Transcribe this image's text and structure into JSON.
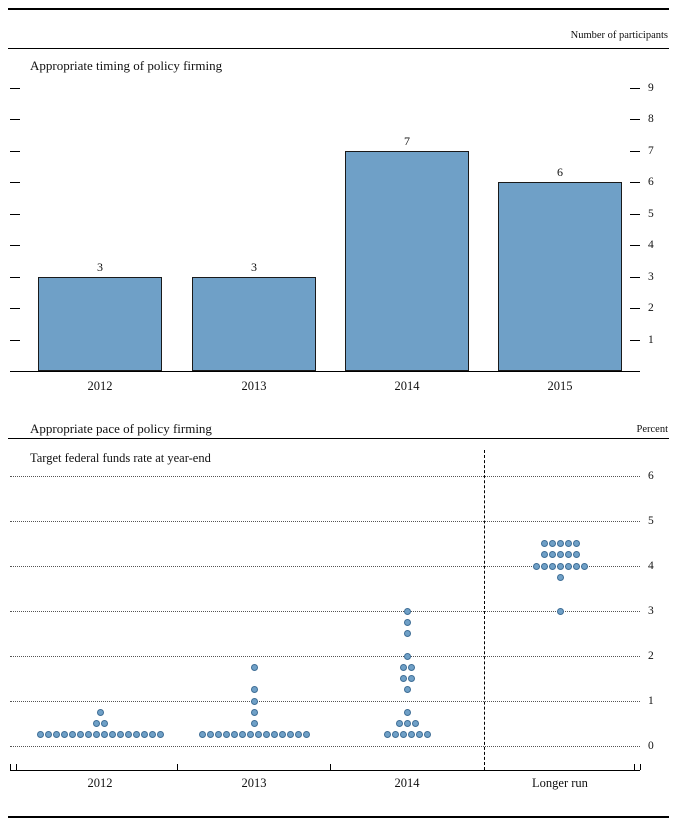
{
  "figure": {
    "top_right_note": "Number of participants",
    "bottom_right_note": "Percent"
  },
  "chart_data": [
    {
      "type": "bar",
      "title": "Appropriate timing of policy firming",
      "right_axis_label": "Number of participants",
      "categories": [
        "2012",
        "2013",
        "2014",
        "2015"
      ],
      "values": [
        3,
        3,
        7,
        6
      ],
      "yticks": [
        1,
        2,
        3,
        4,
        5,
        6,
        7,
        8,
        9
      ],
      "ylim": [
        0,
        9.5
      ],
      "bar_color": "#6fa0c7",
      "grid": "off",
      "legend": "none"
    },
    {
      "type": "scatter",
      "title": "Appropriate pace of policy firming",
      "subtitle": "Target federal funds rate at year-end",
      "right_axis_label": "Percent",
      "categories": [
        "2012",
        "2013",
        "2014",
        "Longer run"
      ],
      "yticks": [
        0,
        1,
        2,
        3,
        4,
        5,
        6
      ],
      "ylim": [
        -0.4,
        6.6
      ],
      "dot_color": "#6fa0c7",
      "grid": "dotted-horizontal",
      "separator_before": "Longer run",
      "columns": [
        {
          "label": "2012",
          "dots": [
            {
              "rate": 0.25,
              "count": 16
            },
            {
              "rate": 0.5,
              "count": 2
            },
            {
              "rate": 0.75,
              "count": 1
            }
          ]
        },
        {
          "label": "2013",
          "dots": [
            {
              "rate": 0.25,
              "count": 14
            },
            {
              "rate": 0.5,
              "count": 1
            },
            {
              "rate": 0.75,
              "count": 1
            },
            {
              "rate": 1.0,
              "count": 1
            },
            {
              "rate": 1.25,
              "count": 1
            },
            {
              "rate": 1.75,
              "count": 1
            }
          ]
        },
        {
          "label": "2014",
          "dots": [
            {
              "rate": 0.25,
              "count": 6
            },
            {
              "rate": 0.5,
              "count": 3
            },
            {
              "rate": 0.75,
              "count": 1
            },
            {
              "rate": 1.25,
              "count": 1
            },
            {
              "rate": 1.5,
              "count": 2
            },
            {
              "rate": 1.75,
              "count": 2
            },
            {
              "rate": 2.0,
              "count": 1
            },
            {
              "rate": 2.5,
              "count": 1
            },
            {
              "rate": 2.75,
              "count": 1
            },
            {
              "rate": 3.0,
              "count": 1
            }
          ]
        },
        {
          "label": "Longer run",
          "dots": [
            {
              "rate": 3.0,
              "count": 1
            },
            {
              "rate": 3.75,
              "count": 1
            },
            {
              "rate": 4.0,
              "count": 7
            },
            {
              "rate": 4.25,
              "count": 5
            },
            {
              "rate": 4.5,
              "count": 5
            }
          ]
        }
      ]
    }
  ]
}
